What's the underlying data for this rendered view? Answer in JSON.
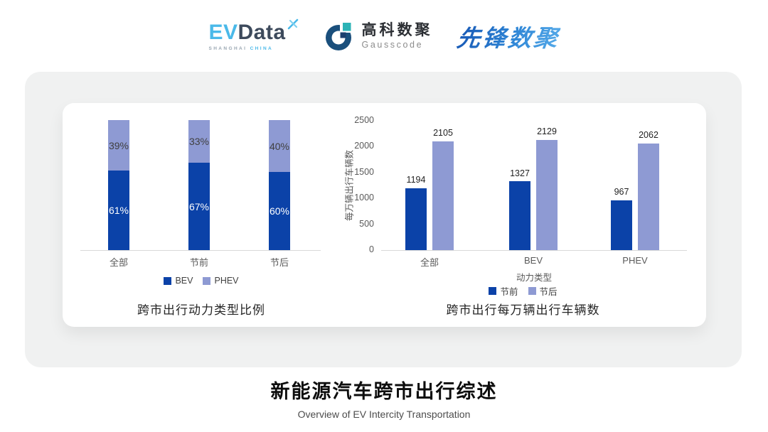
{
  "header": {
    "logos": {
      "evdata": {
        "ev": "EV",
        "data": "Data",
        "sub1": "SHANGHAI",
        "sub2": "CHINA"
      },
      "gausscode": {
        "cn": "高科数聚",
        "en": "Gausscode"
      },
      "xianfeng": {
        "text": "先锋数聚"
      }
    }
  },
  "colors": {
    "series_primary": "#0b42a8",
    "series_secondary": "#8e9ad3",
    "panel_bg": "#f0f1f1",
    "axis_text": "#595959",
    "evdata_cyan": "#4ab9e9",
    "evdata_slate": "#3d4a5c",
    "gausscode_navy": "#1a4f7c",
    "gausscode_teal": "#2cb3b6",
    "gausscode_darksquare": "#1c3e6e",
    "xianfeng_blue": "#2273c9"
  },
  "chart_data": [
    {
      "type": "bar",
      "subtype": "stacked-percent-column",
      "title": "跨市出行动力类型比例",
      "categories": [
        "全部",
        "节前",
        "节后"
      ],
      "series": [
        {
          "name": "BEV",
          "values": [
            61,
            67,
            60
          ],
          "color": "#0b42a8",
          "label_suffix": "%",
          "label_color": "#ffffff"
        },
        {
          "name": "PHEV",
          "values": [
            39,
            33,
            40
          ],
          "color": "#8e9ad3",
          "label_suffix": "%",
          "label_color": "#404040"
        }
      ],
      "legend": [
        "BEV",
        "PHEV"
      ],
      "legend_position": "bottom",
      "ylim": [
        0,
        100
      ],
      "grid": false,
      "axes_visible": false
    },
    {
      "type": "bar",
      "subtype": "grouped-column",
      "title": "跨市出行每万辆出行车辆数",
      "xlabel": "动力类型",
      "ylabel": "每万辆出行车辆数",
      "categories": [
        "全部",
        "BEV",
        "PHEV"
      ],
      "series": [
        {
          "name": "节前",
          "values": [
            1194,
            1327,
            967
          ],
          "color": "#0b42a8"
        },
        {
          "name": "节后",
          "values": [
            2105,
            2129,
            2062
          ],
          "color": "#8e9ad3"
        }
      ],
      "yticks": [
        0,
        500,
        1000,
        1500,
        2000,
        2500
      ],
      "ylim": [
        0,
        2500
      ],
      "legend": [
        "节前",
        "节后"
      ],
      "legend_position": "bottom",
      "grid": false
    }
  ],
  "footer": {
    "title": "新能源汽车跨市出行综述",
    "subtitle": "Overview of EV Intercity Transportation"
  }
}
